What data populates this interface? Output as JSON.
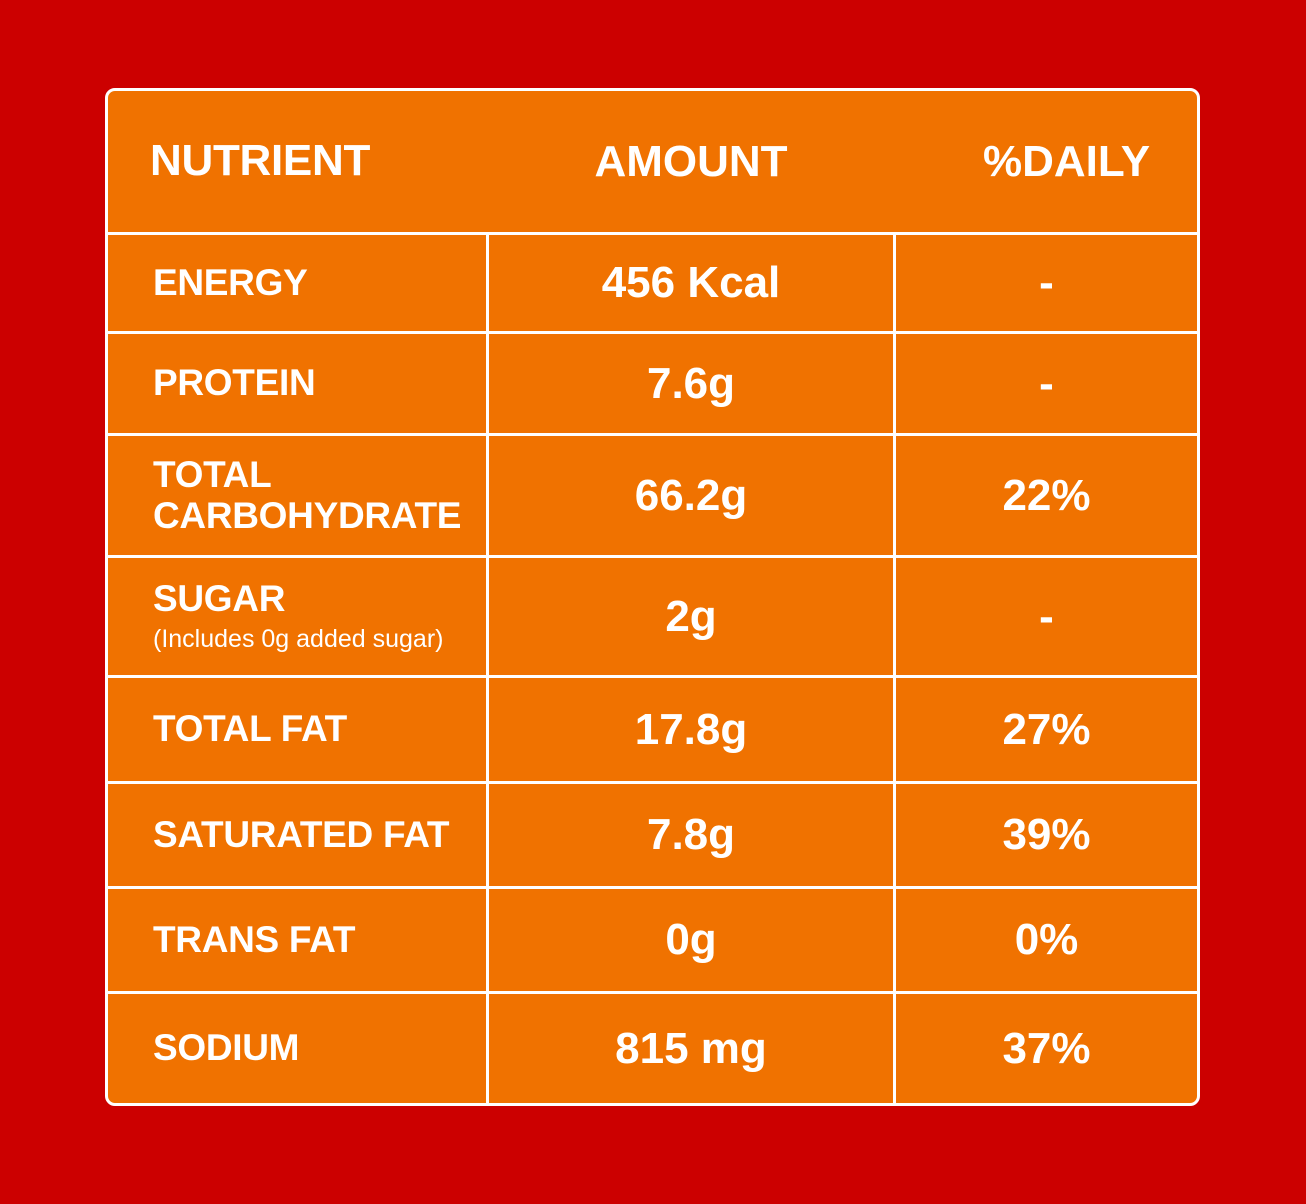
{
  "table": {
    "header": [
      "NUTRIENT",
      "AMOUNT",
      "%DAILY"
    ],
    "rows": [
      {
        "nutrient": "ENERGY",
        "amount": "456 Kcal",
        "daily": "-"
      },
      {
        "nutrient": "PROTEIN",
        "amount": "7.6g",
        "daily": "-"
      },
      {
        "nutrient": "TOTAL CARBOHYDRATE",
        "amount": "66.2g",
        "daily": "22%"
      },
      {
        "nutrient": "SUGAR",
        "note": "(Includes 0g added sugar)",
        "amount": "2g",
        "daily": "-"
      },
      {
        "nutrient": "TOTAL FAT",
        "amount": "17.8g",
        "daily": "27%"
      },
      {
        "nutrient": "SATURATED FAT",
        "amount": "7.8g",
        "daily": "39%"
      },
      {
        "nutrient": "TRANS FAT",
        "amount": "0g",
        "daily": "0%"
      },
      {
        "nutrient": "SODIUM",
        "amount": "815 mg",
        "daily": "37%"
      }
    ]
  }
}
